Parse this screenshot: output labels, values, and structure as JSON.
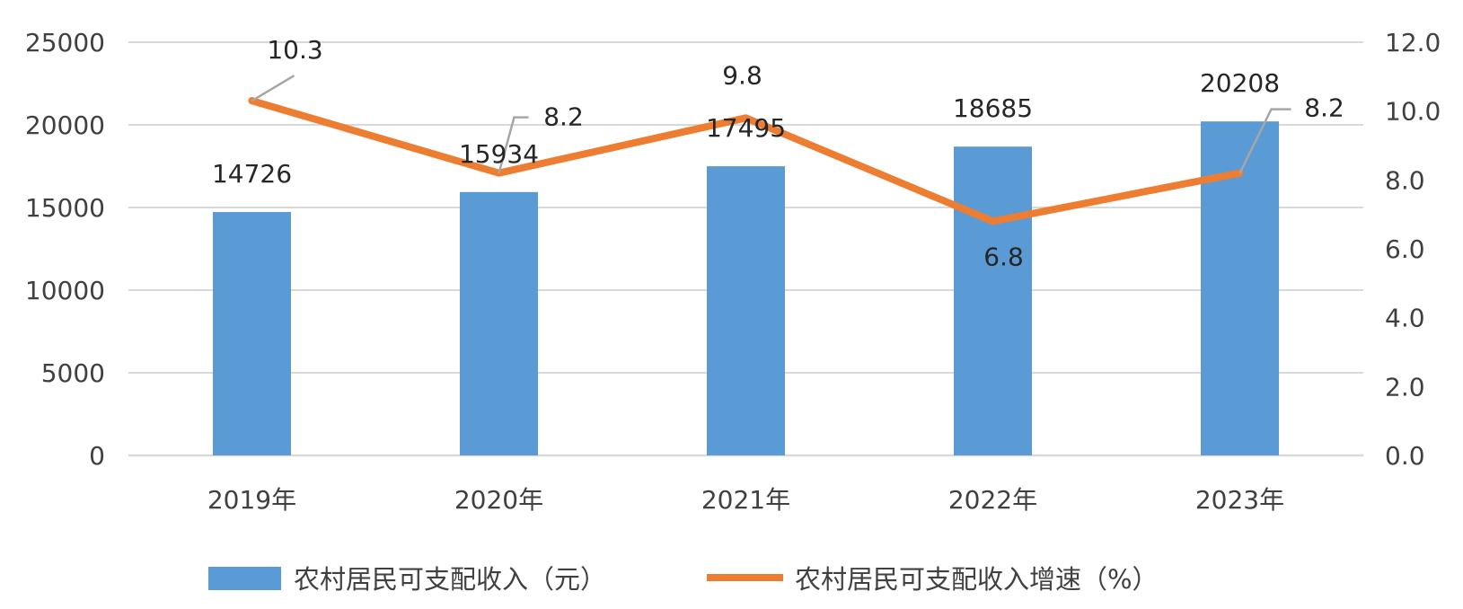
{
  "chart_data": {
    "type": "bar",
    "categories": [
      "2019年",
      "2020年",
      "2021年",
      "2022年",
      "2023年"
    ],
    "series": [
      {
        "name": "农村居民可支配收入（元）",
        "type": "bar",
        "axis": "left",
        "color": "#5b9bd5",
        "values": [
          14726,
          15934,
          17495,
          18685,
          20208
        ],
        "labels": [
          "14726",
          "15934",
          "17495",
          "18685",
          "20208"
        ]
      },
      {
        "name": "农村居民可支配收入增速（%）",
        "type": "line",
        "axis": "right",
        "color": "#ed7d31",
        "values": [
          10.3,
          8.2,
          9.8,
          6.8,
          8.2
        ],
        "labels": [
          "10.3",
          "8.2",
          "9.8",
          "6.8",
          "8.2"
        ]
      }
    ],
    "y_left": {
      "ylim": [
        0,
        25000
      ],
      "ticks": [
        "0",
        "5000",
        "10000",
        "15000",
        "20000",
        "25000"
      ]
    },
    "y_right": {
      "ylim": [
        0,
        12
      ],
      "ticks": [
        "0.0",
        "2.0",
        "4.0",
        "6.0",
        "8.0",
        "10.0",
        "12.0"
      ]
    },
    "grid": true,
    "legend_position": "bottom",
    "title": "",
    "xlabel": "",
    "ylabel": ""
  }
}
